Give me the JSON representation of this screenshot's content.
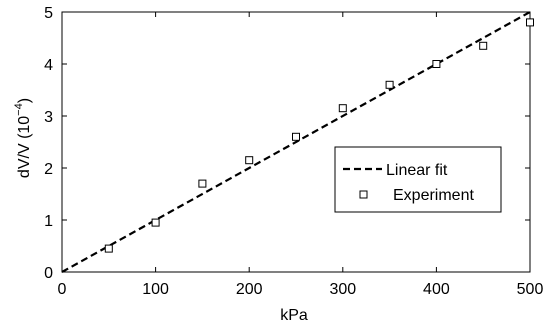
{
  "chart_data": {
    "type": "scatter",
    "xlabel": "kPa",
    "ylabel_main": "dV/V (10",
    "ylabel_sup": "−4",
    "ylabel_close": ")",
    "xlim": [
      0,
      500
    ],
    "ylim": [
      0,
      5
    ],
    "xticks": [
      "0",
      "100",
      "200",
      "300",
      "400",
      "500"
    ],
    "yticks": [
      "0",
      "1",
      "2",
      "3",
      "4",
      "5"
    ],
    "grid": false,
    "legend_position": "right",
    "series": [
      {
        "name": "Linear fit",
        "kind": "line",
        "style": "dashed",
        "color": "#000000",
        "x": [
          0,
          500
        ],
        "y": [
          0,
          5.0
        ]
      },
      {
        "name": "Experiment",
        "kind": "scatter",
        "marker": "square",
        "color": "#000000",
        "x": [
          50,
          100,
          150,
          200,
          250,
          300,
          350,
          400,
          450,
          500
        ],
        "y": [
          0.45,
          0.95,
          1.7,
          2.15,
          2.6,
          3.15,
          3.6,
          4.0,
          4.35,
          4.8
        ]
      }
    ]
  }
}
